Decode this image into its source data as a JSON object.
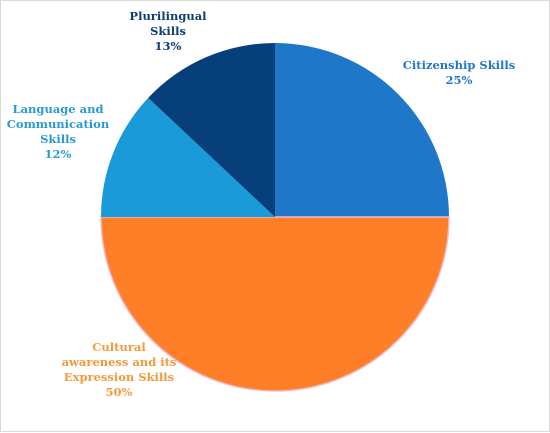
{
  "chart_data": {
    "type": "pie",
    "slices": [
      {
        "label": [
          "Citizenship Skills"
        ],
        "value": 25,
        "value_label": "25%",
        "color": "#1f77c9",
        "label_color": "#1f77c9"
      },
      {
        "label": [
          "Cultural",
          "awareness and its",
          "Expression Skills"
        ],
        "value": 50,
        "value_label": "50%",
        "color": "#fe7f27",
        "label_color": "#f59a3a"
      },
      {
        "label": [
          "Language and",
          "Communication",
          "Skills"
        ],
        "value": 12,
        "value_label": "12%",
        "color": "#1a9ad8",
        "label_color": "#2a9ad6"
      },
      {
        "label": [
          "Plurilingual",
          "Skills"
        ],
        "value": 13,
        "value_label": "13%",
        "color": "#063f7a",
        "label_color": "#0f3d73"
      }
    ],
    "start_angle_deg": 0,
    "direction": "clockwise",
    "legend": "none",
    "data_labels": "outside-category-and-percent"
  }
}
